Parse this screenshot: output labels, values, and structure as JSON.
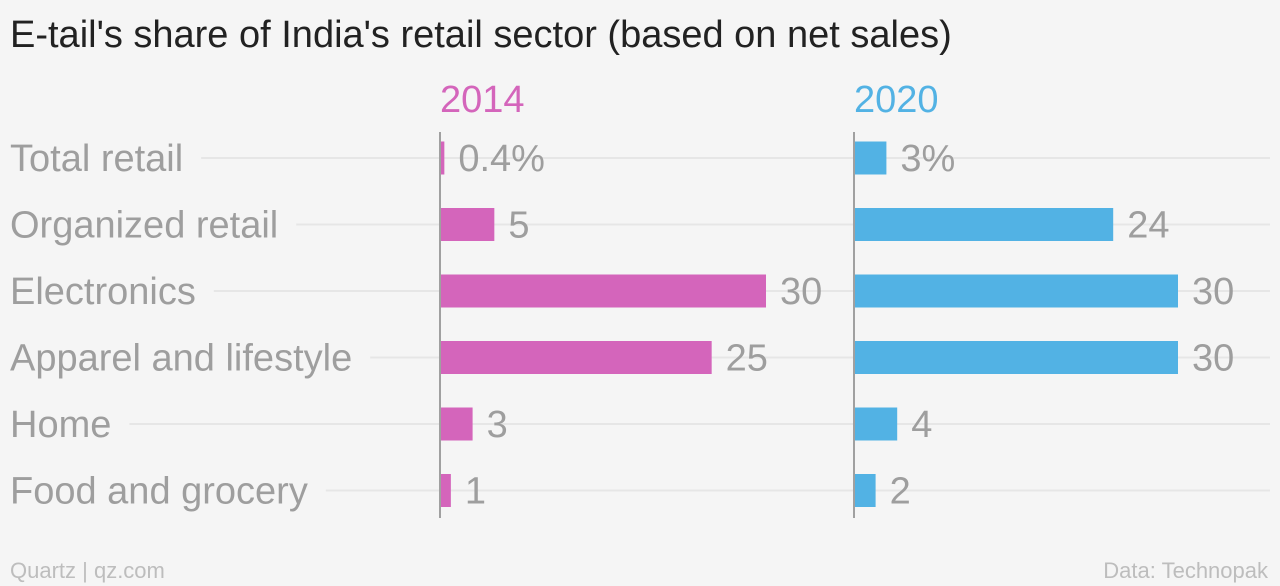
{
  "chart_data": {
    "type": "bar",
    "orientation": "horizontal",
    "title": "E-tail's share of India's retail sector (based on net sales)",
    "categories": [
      "Total retail",
      "Organized retail",
      "Electronics",
      "Apparel and lifestyle",
      "Home",
      "Food and grocery"
    ],
    "series": [
      {
        "name": "2014",
        "color": "#d465bb",
        "values": [
          0.4,
          5,
          30,
          25,
          3,
          1
        ],
        "labels": [
          "0.4%",
          "5",
          "30",
          "25",
          "3",
          "1"
        ]
      },
      {
        "name": "2020",
        "color": "#52b2e4",
        "values": [
          3,
          24,
          30,
          30,
          4,
          2
        ],
        "labels": [
          "3%",
          "24",
          "30",
          "30",
          "4",
          "2"
        ]
      }
    ],
    "xlim": [
      0,
      30
    ],
    "grid": true,
    "layout": "small-multiples"
  },
  "footer": {
    "source_left": "Quartz | qz.com",
    "source_right": "Data: Technopak"
  }
}
